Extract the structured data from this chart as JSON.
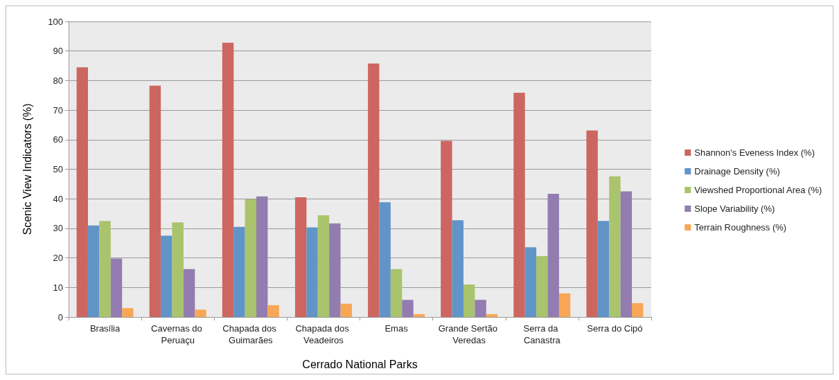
{
  "chart_data": {
    "type": "bar",
    "xlabel": "Cerrado National Parks",
    "ylabel": "Scenic View Indicators (%)",
    "categories": [
      "Brasília",
      "Cavernas do Peruaçu",
      "Chapada dos Guimarães",
      "Chapada dos Veadeiros",
      "Emas",
      "Grande Sertão Veredas",
      "Serra da Canastra",
      "Serra do Cipó"
    ],
    "series": [
      {
        "name": "Shannon's Eveness Index (%)",
        "color": "#cd6660",
        "values": [
          84.5,
          78.3,
          92.8,
          40.5,
          85.8,
          59.6,
          75.9,
          63.1
        ]
      },
      {
        "name": "Drainage Density (%)",
        "color": "#6195c8",
        "values": [
          31,
          27.5,
          30.5,
          30.3,
          38.8,
          32.7,
          23.6,
          32.5
        ]
      },
      {
        "name": "Viewshed Proportional Area (%)",
        "color": "#a9c46c",
        "values": [
          32.5,
          32,
          39.8,
          34.4,
          16.2,
          11,
          20.6,
          47.6
        ]
      },
      {
        "name": "Slope Variability (%)",
        "color": "#937cb0",
        "values": [
          19.8,
          16.2,
          40.8,
          31.7,
          5.8,
          5.8,
          41.7,
          42.5
        ]
      },
      {
        "name": "Terrain Roughness (%)",
        "color": "#f8a757",
        "values": [
          3,
          2.5,
          4,
          4.5,
          1,
          1,
          8,
          4.7
        ]
      }
    ],
    "ylim": [
      0,
      100
    ],
    "yticks": [
      0,
      10,
      20,
      30,
      40,
      50,
      60,
      70,
      80,
      90,
      100
    ],
    "grid": "y",
    "legend": "right"
  }
}
